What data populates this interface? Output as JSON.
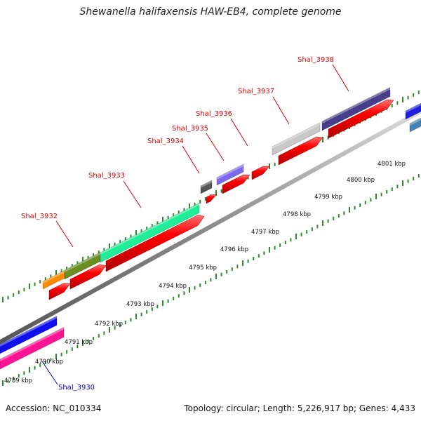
{
  "title": "Shewanella halifaxensis HAW-EB4, complete genome",
  "footer": {
    "accession": "Accession: NC_010334",
    "summary": "Topology: circular; Length: 5,226,917 bp; Genes: 4,433"
  },
  "colors": {
    "track": "#8c8c8c",
    "scale_ticks": "#2e8b2e",
    "gene_red": "#ff0000",
    "label_red": "#dd0000",
    "label_blue": "#0000cc"
  },
  "scale": {
    "unit": "kbp",
    "labels": [
      "4789 kbp",
      "4790 kbp",
      "4791 kbp",
      "4792 kbp",
      "4793 kbp",
      "4794 kbp",
      "4795 kbp",
      "4796 kbp",
      "4797 kbp",
      "4798 kbp",
      "4799 kbp",
      "4800 kbp",
      "4801 kbp"
    ]
  },
  "genes": [
    {
      "name": "Shal_3930",
      "strand": "-",
      "label_color": "blue",
      "feature_color": "#ff1493"
    },
    {
      "name": "Shal_3932",
      "strand": "+",
      "label_color": "red",
      "feature_color": "#ff8c00"
    },
    {
      "name": "Shal_3933",
      "strand": "+",
      "label_color": "red",
      "feature_color": "#22ee99"
    },
    {
      "name": "Shal_3934",
      "strand": "+",
      "label_color": "red",
      "feature_color": "#555555"
    },
    {
      "name": "Shal_3935",
      "strand": "+",
      "label_color": "red",
      "feature_color": "#7b68ee"
    },
    {
      "name": "Shal_3936",
      "strand": "+",
      "label_color": "red",
      "feature_color": "#ff0000"
    },
    {
      "name": "Shal_3937",
      "strand": "+",
      "label_color": "red",
      "feature_color": "#c8c8c8"
    },
    {
      "name": "Shal_3938",
      "strand": "+",
      "label_color": "red",
      "feature_color": "#483d8b"
    }
  ]
}
